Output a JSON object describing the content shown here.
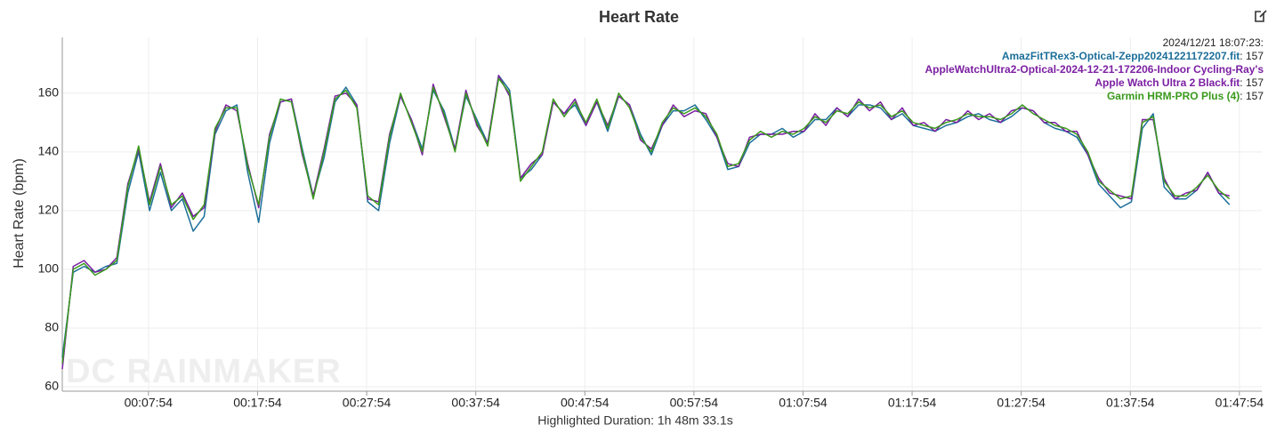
{
  "chart_data": {
    "type": "line",
    "title": "Heart Rate",
    "timestamp": "2024/12/21 18:07:23:",
    "watermark": "DC RAINMAKER",
    "x_label": "Highlighted Duration: 1h 48m 33.1s",
    "y_label": "Heart Rate (bpm)",
    "grid": true,
    "legend": "top-right",
    "x": [
      0,
      60,
      120,
      180,
      240,
      300,
      360,
      420,
      480,
      540,
      600,
      660,
      720,
      780,
      840,
      900,
      960,
      1020,
      1080,
      1140,
      1200,
      1260,
      1320,
      1380,
      1440,
      1500,
      1560,
      1620,
      1680,
      1740,
      1800,
      1860,
      1920,
      1980,
      2040,
      2100,
      2160,
      2220,
      2280,
      2340,
      2400,
      2460,
      2520,
      2580,
      2640,
      2700,
      2760,
      2820,
      2880,
      2940,
      3000,
      3060,
      3120,
      3180,
      3240,
      3300,
      3360,
      3420,
      3480,
      3540,
      3600,
      3660,
      3720,
      3780,
      3840,
      3900,
      3960,
      4020,
      4080,
      4140,
      4200,
      4260,
      4320,
      4380,
      4440,
      4500,
      4560,
      4620,
      4680,
      4740,
      4800,
      4860,
      4920,
      4980,
      5040,
      5100,
      5160,
      5220,
      5280,
      5340,
      5400,
      5460,
      5520,
      5580,
      5640,
      5700,
      5760,
      5820,
      5880,
      5940,
      6000,
      6060,
      6120,
      6180,
      6240,
      6300,
      6360,
      6420
    ],
    "xlim": [
      0,
      6597
    ],
    "xticks": [
      {
        "value": 474,
        "label": "00:07:54"
      },
      {
        "value": 1074,
        "label": "00:17:54"
      },
      {
        "value": 1674,
        "label": "00:27:54"
      },
      {
        "value": 2274,
        "label": "00:37:54"
      },
      {
        "value": 2874,
        "label": "00:47:54"
      },
      {
        "value": 3474,
        "label": "00:57:54"
      },
      {
        "value": 4074,
        "label": "01:07:54"
      },
      {
        "value": 4674,
        "label": "01:17:54"
      },
      {
        "value": 5274,
        "label": "01:27:54"
      },
      {
        "value": 5874,
        "label": "01:37:54"
      },
      {
        "value": 6474,
        "label": "01:47:54"
      }
    ],
    "ylim": [
      58.5,
      179
    ],
    "yticks": [
      60,
      80,
      100,
      120,
      140,
      160
    ],
    "series": [
      {
        "name": "AmazFitTRex3-Optical-Zepp20241221172207.fit",
        "color": "#1d6f9a",
        "legend_value": 157,
        "values": [
          70,
          99,
          101,
          99,
          101,
          102,
          126,
          140,
          120,
          133,
          120,
          124,
          113,
          118,
          146,
          154,
          156,
          133,
          116,
          143,
          157,
          158,
          141,
          125,
          138,
          157,
          162,
          156,
          123,
          120,
          143,
          159,
          151,
          141,
          161,
          154,
          141,
          159,
          151,
          143,
          166,
          161,
          131,
          134,
          139,
          157,
          153,
          156,
          149,
          157,
          147,
          159,
          156,
          146,
          139,
          149,
          154,
          154,
          156,
          151,
          145,
          134,
          135,
          143,
          146,
          146,
          148,
          145,
          147,
          151,
          151,
          155,
          152,
          156,
          156,
          155,
          151,
          153,
          149,
          148,
          147,
          149,
          150,
          152,
          153,
          151,
          150,
          152,
          155,
          154,
          150,
          148,
          147,
          145,
          139,
          129,
          125,
          121,
          123,
          148,
          153,
          128,
          124,
          124,
          127,
          133,
          126,
          122
        ]
      },
      {
        "name": "AppleWatchUltra2-Optical-2024-12-21-172206-Indoor Cycling-Ray's Apple Watch Ultra 2 Black.fit",
        "color": "#7b1fa2",
        "legend_value": 157,
        "values": [
          66,
          101,
          103,
          99,
          100,
          104,
          129,
          141,
          123,
          136,
          121,
          126,
          118,
          121,
          147,
          156,
          154,
          136,
          121,
          146,
          157,
          158,
          139,
          125,
          141,
          159,
          160,
          156,
          124,
          123,
          146,
          159,
          151,
          139,
          163,
          152,
          141,
          161,
          149,
          143,
          166,
          159,
          131,
          136,
          139,
          157,
          153,
          158,
          149,
          157,
          149,
          159,
          156,
          144,
          141,
          149,
          156,
          152,
          154,
          153,
          145,
          136,
          135,
          145,
          146,
          146,
          146,
          147,
          147,
          153,
          149,
          155,
          152,
          158,
          154,
          157,
          151,
          155,
          149,
          150,
          147,
          151,
          150,
          154,
          151,
          153,
          150,
          154,
          155,
          154,
          150,
          150,
          147,
          147,
          139,
          131,
          126,
          125,
          124,
          151,
          151,
          131,
          124,
          126,
          127,
          133,
          126,
          125
        ]
      },
      {
        "name": "Garmin HRM-PRO Plus (4)",
        "color": "#3a9a1c",
        "legend_value": 157,
        "values": [
          68,
          100,
          102,
          98,
          100,
          103,
          128,
          142,
          122,
          135,
          122,
          125,
          117,
          122,
          148,
          155,
          155,
          135,
          122,
          145,
          158,
          157,
          140,
          124,
          140,
          158,
          161,
          155,
          125,
          122,
          145,
          160,
          150,
          140,
          162,
          153,
          140,
          160,
          150,
          142,
          165,
          160,
          130,
          135,
          140,
          158,
          152,
          157,
          150,
          158,
          148,
          160,
          155,
          145,
          140,
          150,
          155,
          153,
          155,
          152,
          146,
          135,
          136,
          144,
          147,
          145,
          147,
          146,
          148,
          152,
          150,
          154,
          153,
          157,
          155,
          156,
          152,
          154,
          150,
          149,
          148,
          150,
          151,
          153,
          152,
          152,
          151,
          153,
          156,
          153,
          151,
          149,
          148,
          146,
          140,
          130,
          127,
          124,
          125,
          150,
          152,
          130,
          125,
          125,
          128,
          132,
          127,
          124
        ]
      }
    ]
  }
}
